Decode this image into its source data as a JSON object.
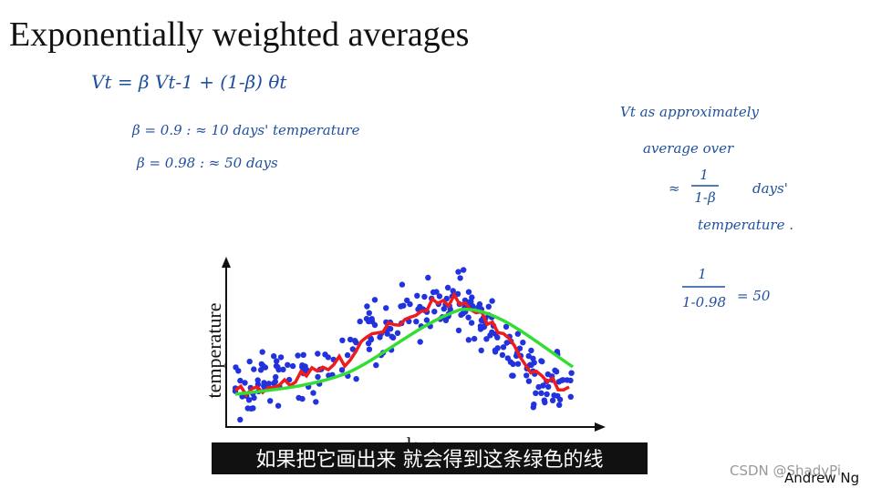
{
  "title": "Exponentially weighted averages",
  "equations": {
    "recurrence": "Vt = β Vt-1  +  (1-β) θt",
    "cases": [
      "β = 0.9   :  ≈ 10 days' temperature",
      "β = 0.98   :  ≈ 50 days"
    ]
  },
  "side_note": {
    "lines": [
      "Vt  as  approximately",
      "average  over",
      "days'",
      "temperature ."
    ],
    "fraction": {
      "num": "1",
      "den": "1-β"
    },
    "example": {
      "num": "1",
      "den": "1-0.98",
      "result": "= 50"
    }
  },
  "plot": {
    "ylabel": "temperature",
    "xlabel": "days"
  },
  "subtitle": "如果把它画出来 就会得到这条绿色的线",
  "watermark": "CSDN @ShadyPi",
  "credit": "Andrew Ng"
}
